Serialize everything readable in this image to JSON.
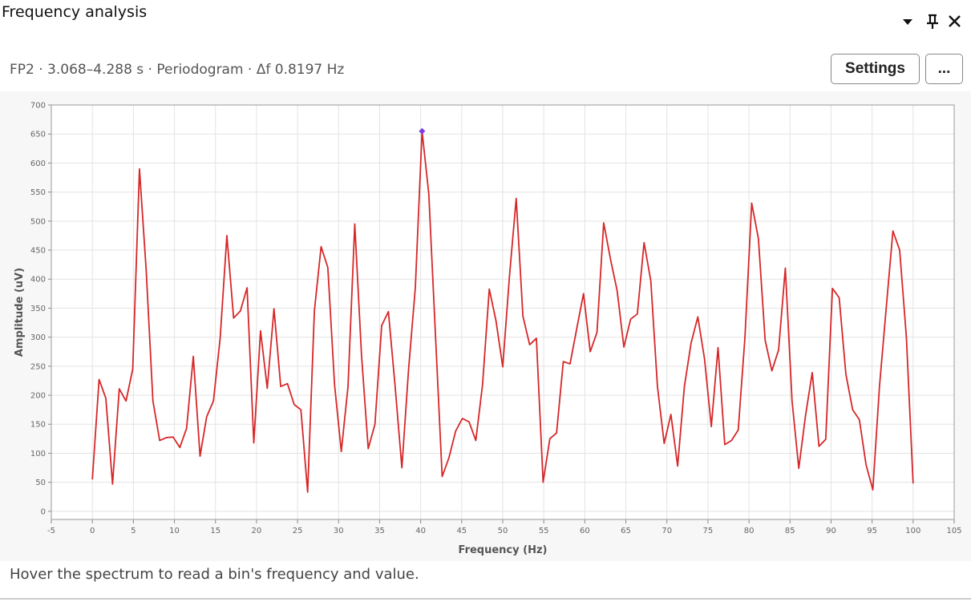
{
  "header": {
    "title": "Frequency analysis"
  },
  "toolbar": {
    "subtitle": "FP2 · 3.068–4.288 s · Periodogram · Δf 0.8197 Hz",
    "buttons": [
      "Settings",
      "..."
    ]
  },
  "chart_data": {
    "type": "line",
    "x_label": "Frequency (Hz)",
    "y_label": "Amplitude (uV)",
    "x": [
      0,
      0.82,
      1.64,
      2.46,
      3.28,
      4.1,
      4.92,
      5.74,
      6.56,
      7.38,
      8.2,
      9.02,
      9.84,
      10.66,
      11.48,
      12.3,
      13.12,
      13.93,
      14.75,
      15.57,
      16.39,
      17.21,
      18.03,
      18.85,
      19.67,
      20.49,
      21.31,
      22.13,
      22.95,
      23.77,
      24.59,
      25.41,
      26.23,
      27.05,
      27.87,
      28.69,
      29.51,
      30.33,
      31.15,
      31.97,
      32.79,
      33.61,
      34.43,
      35.25,
      36.07,
      36.89,
      37.71,
      38.53,
      39.35,
      40.17,
      40.99,
      41.8,
      42.62,
      43.44,
      44.26,
      45.08,
      45.9,
      46.72,
      47.54,
      48.36,
      49.18,
      50,
      50.82,
      51.64,
      52.46,
      53.28,
      54.1,
      54.92,
      55.74,
      56.56,
      57.38,
      58.2,
      59.02,
      59.84,
      60.66,
      61.48,
      62.3,
      63.12,
      63.94,
      64.76,
      65.58,
      66.4,
      67.22,
      68.04,
      68.85,
      69.67,
      70.49,
      71.31,
      72.13,
      72.95,
      73.77,
      74.59,
      75.41,
      76.23,
      77.05,
      77.87,
      78.69,
      79.51,
      80.33,
      81.15,
      81.97,
      82.79,
      83.61,
      84.43,
      85.25,
      86.07,
      86.89,
      87.71,
      88.53,
      89.35,
      90.17,
      90.99,
      91.81,
      92.63,
      93.45,
      94.27,
      95.09,
      95.9,
      96.72,
      97.54,
      98.36,
      99.18,
      100
    ],
    "series": [
      {
        "color": "#d62728",
        "values": [
          55,
          227,
          195,
          47,
          211,
          190,
          245,
          590,
          415,
          190,
          122,
          127,
          128,
          110,
          143,
          267,
          95,
          163,
          190,
          298,
          475,
          333,
          345,
          385,
          118,
          311,
          212,
          349,
          215,
          220,
          184,
          175,
          33,
          345,
          456,
          420,
          218,
          103,
          215,
          495,
          270,
          108,
          150,
          320,
          344,
          215,
          75,
          245,
          385,
          655,
          547,
          305,
          60,
          92,
          138,
          160,
          154,
          122,
          218,
          383,
          328,
          249,
          405,
          539,
          336,
          287,
          298,
          50,
          125,
          135,
          258,
          254,
          315,
          375,
          275,
          308,
          497,
          435,
          380,
          283,
          331,
          340,
          463,
          397,
          215,
          117,
          167,
          78,
          215,
          290,
          335,
          262,
          146,
          282,
          115,
          122,
          140,
          300,
          531,
          470,
          295,
          242,
          278,
          419,
          190,
          74,
          165,
          239,
          112,
          124,
          384,
          368,
          236,
          175,
          158,
          80,
          37,
          215,
          350,
          483,
          450,
          300,
          48
        ]
      }
    ],
    "marker": {
      "index": 49,
      "color": "#7b3fe4"
    },
    "xlim": [
      -5,
      105
    ],
    "xticks": [
      -5,
      0,
      5,
      10,
      15,
      20,
      25,
      30,
      35,
      40,
      45,
      50,
      55,
      60,
      65,
      70,
      75,
      80,
      85,
      90,
      95,
      100,
      105
    ],
    "ylim": [
      -14,
      700
    ],
    "yticks": [
      0,
      50,
      100,
      150,
      200,
      250,
      300,
      350,
      400,
      450,
      500,
      550,
      600,
      650,
      700
    ],
    "grid": true
  },
  "footer": {
    "hint": "Hover the spectrum to read a bin's frequency and value."
  }
}
